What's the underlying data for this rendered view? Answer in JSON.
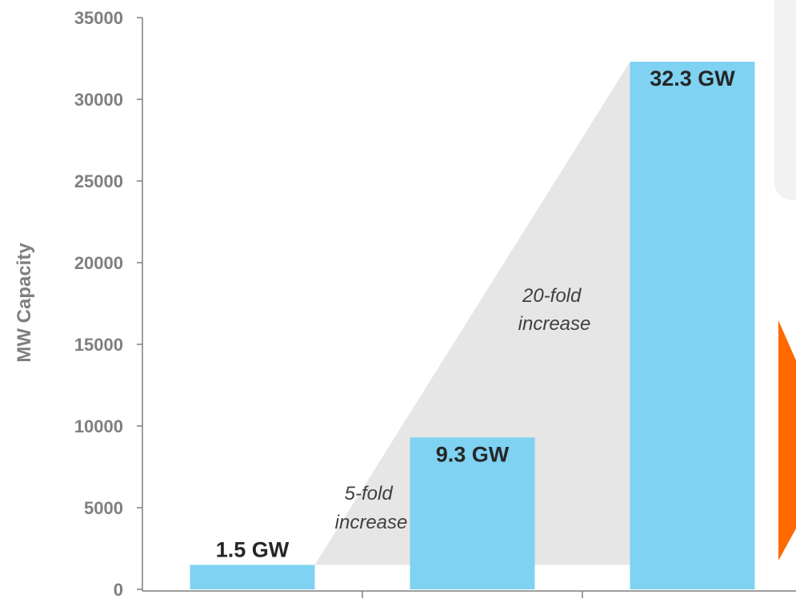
{
  "chart_data": {
    "type": "bar",
    "categories": [
      "",
      "",
      ""
    ],
    "values": [
      1500,
      9300,
      32300
    ],
    "ylabel": "MW Capacity",
    "xlabel": "",
    "ylim": [
      0,
      35000
    ],
    "yticks": [
      "0",
      "5000",
      "10000",
      "15000",
      "20000",
      "25000",
      "30000",
      "35000"
    ],
    "data_labels": [
      "1.5 GW",
      "9.3 GW",
      "32.3 GW"
    ],
    "annotations": [
      {
        "lines": [
          "5-fold",
          "increase"
        ]
      },
      {
        "lines": [
          "20-fold",
          "increase"
        ]
      }
    ],
    "grid": false,
    "legend": "none"
  },
  "colors": {
    "bar": "#7fd2f1",
    "axis": "#7f7f7f",
    "growth_wedge": "#e6e6e6",
    "side_panel": "#f2f2f2",
    "accent_arrow": "#ff6a00"
  }
}
